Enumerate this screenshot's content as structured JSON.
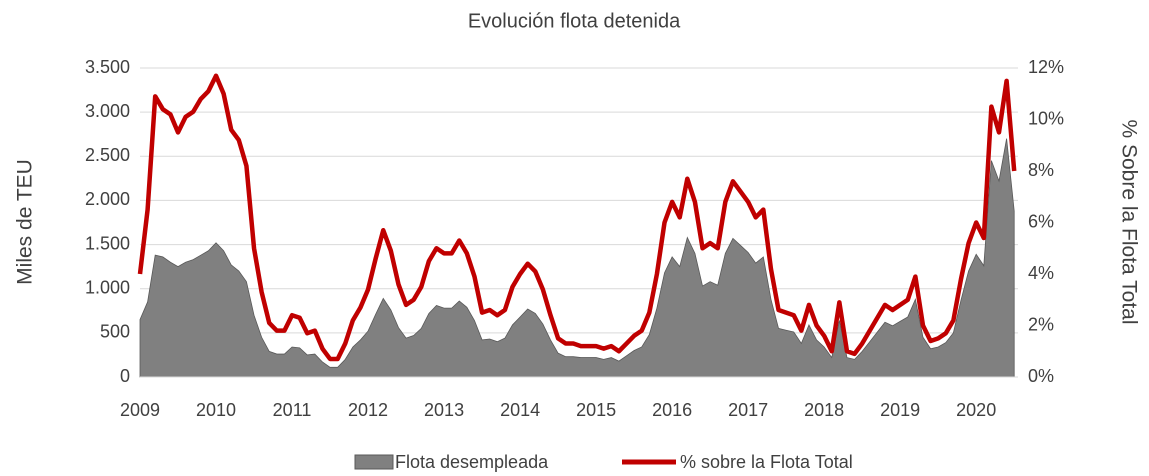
{
  "chart_data": {
    "type": "area-line",
    "title": "Evolución flota detenida",
    "ylabel": "Miles de TEU",
    "y2label": "% Sobre la Flota Total",
    "x": [
      2009.0,
      2009.1,
      2009.2,
      2009.3,
      2009.4,
      2009.5,
      2009.6,
      2009.7,
      2009.8,
      2009.9,
      2010.0,
      2010.1,
      2010.2,
      2010.3,
      2010.4,
      2010.5,
      2010.6,
      2010.7,
      2010.8,
      2010.9,
      2011.0,
      2011.1,
      2011.2,
      2011.3,
      2011.4,
      2011.5,
      2011.6,
      2011.7,
      2011.8,
      2011.9,
      2012.0,
      2012.1,
      2012.2,
      2012.3,
      2012.4,
      2012.5,
      2012.6,
      2012.7,
      2012.8,
      2012.9,
      2013.0,
      2013.1,
      2013.2,
      2013.3,
      2013.4,
      2013.5,
      2013.6,
      2013.7,
      2013.8,
      2013.9,
      2014.0,
      2014.1,
      2014.2,
      2014.3,
      2014.4,
      2014.5,
      2014.6,
      2014.7,
      2014.8,
      2014.9,
      2015.0,
      2015.1,
      2015.2,
      2015.3,
      2015.4,
      2015.5,
      2015.6,
      2015.7,
      2015.8,
      2015.9,
      2016.0,
      2016.1,
      2016.2,
      2016.3,
      2016.4,
      2016.5,
      2016.6,
      2016.7,
      2016.8,
      2016.9,
      2017.0,
      2017.1,
      2017.2,
      2017.3,
      2017.4,
      2017.5,
      2017.6,
      2017.7,
      2017.8,
      2017.9,
      2018.0,
      2018.1,
      2018.2,
      2018.3,
      2018.4,
      2018.5,
      2018.6,
      2018.7,
      2018.8,
      2018.9,
      2019.0,
      2019.1,
      2019.2,
      2019.3,
      2019.4,
      2019.5,
      2019.6,
      2019.7,
      2019.8,
      2019.9,
      2020.0,
      2020.1,
      2020.2,
      2020.3,
      2020.4,
      2020.5
    ],
    "series": [
      {
        "name": "Flota desempleada",
        "color": "#808080",
        "kind": "area",
        "values": [
          650,
          850,
          1380,
          1360,
          1300,
          1250,
          1300,
          1330,
          1380,
          1430,
          1520,
          1430,
          1270,
          1200,
          1080,
          700,
          450,
          290,
          260,
          260,
          340,
          330,
          250,
          260,
          170,
          110,
          110,
          200,
          340,
          420,
          520,
          710,
          890,
          760,
          560,
          440,
          470,
          550,
          720,
          810,
          780,
          780,
          860,
          790,
          640,
          420,
          430,
          400,
          440,
          590,
          680,
          770,
          720,
          600,
          420,
          270,
          230,
          230,
          220,
          220,
          220,
          200,
          220,
          180,
          240,
          300,
          340,
          480,
          780,
          1180,
          1360,
          1250,
          1580,
          1400,
          1030,
          1080,
          1040,
          1400,
          1570,
          1490,
          1410,
          1290,
          1360,
          880,
          550,
          530,
          510,
          380,
          590,
          420,
          340,
          220,
          640,
          220,
          200,
          290,
          400,
          510,
          620,
          580,
          630,
          680,
          880,
          450,
          320,
          340,
          390,
          500,
          870,
          1200,
          1390,
          1260,
          2450,
          2220,
          2700,
          1880
        ]
      },
      {
        "name": "% sobre la Flota Total",
        "color": "#c00000",
        "kind": "line",
        "axis": "y2",
        "values": [
          4.0,
          6.5,
          10.9,
          10.4,
          10.2,
          9.5,
          10.1,
          10.3,
          10.8,
          11.1,
          11.7,
          11.0,
          9.6,
          9.2,
          8.2,
          5.0,
          3.3,
          2.1,
          1.8,
          1.8,
          2.4,
          2.3,
          1.7,
          1.8,
          1.1,
          0.7,
          0.7,
          1.3,
          2.2,
          2.7,
          3.4,
          4.6,
          5.7,
          4.9,
          3.6,
          2.8,
          3.0,
          3.5,
          4.5,
          5.0,
          4.8,
          4.8,
          5.3,
          4.8,
          3.9,
          2.5,
          2.6,
          2.4,
          2.6,
          3.5,
          4.0,
          4.4,
          4.1,
          3.4,
          2.4,
          1.5,
          1.3,
          1.3,
          1.2,
          1.2,
          1.2,
          1.1,
          1.2,
          1.0,
          1.3,
          1.6,
          1.8,
          2.5,
          4.0,
          6.0,
          6.8,
          6.2,
          7.7,
          6.8,
          5.0,
          5.2,
          5.0,
          6.8,
          7.6,
          7.2,
          6.8,
          6.2,
          6.5,
          4.2,
          2.6,
          2.5,
          2.4,
          1.8,
          2.8,
          2.0,
          1.6,
          1.0,
          2.9,
          1.0,
          0.9,
          1.3,
          1.8,
          2.3,
          2.8,
          2.6,
          2.8,
          3.0,
          3.9,
          2.0,
          1.4,
          1.5,
          1.7,
          2.2,
          3.8,
          5.2,
          6.0,
          5.4,
          10.5,
          9.5,
          11.5,
          8.0
        ]
      }
    ],
    "xlim": [
      2009,
      2020.55
    ],
    "xticks": [
      2009,
      2010,
      2011,
      2012,
      2013,
      2014,
      2015,
      2016,
      2017,
      2018,
      2019,
      2020
    ],
    "ylim": [
      0,
      3500
    ],
    "yticks": [
      0,
      500,
      {
        "value": 1000,
        "label": "1.000"
      },
      {
        "value": 1500,
        "label": "1.500"
      },
      {
        "value": 2000,
        "label": "2.000"
      },
      {
        "value": 2500,
        "label": "2.500"
      },
      {
        "value": 3000,
        "label": "3.000"
      },
      {
        "value": 3500,
        "label": "3.500"
      }
    ],
    "y2lim": [
      0,
      12
    ],
    "y2ticks": [
      {
        "value": 0,
        "label": "0%"
      },
      {
        "value": 2,
        "label": "2%"
      },
      {
        "value": 4,
        "label": "4%"
      },
      {
        "value": 6,
        "label": "6%"
      },
      {
        "value": 8,
        "label": "8%"
      },
      {
        "value": 10,
        "label": "10%"
      },
      {
        "value": 12,
        "label": "12%"
      }
    ],
    "grid": true,
    "legend": "bottom"
  }
}
